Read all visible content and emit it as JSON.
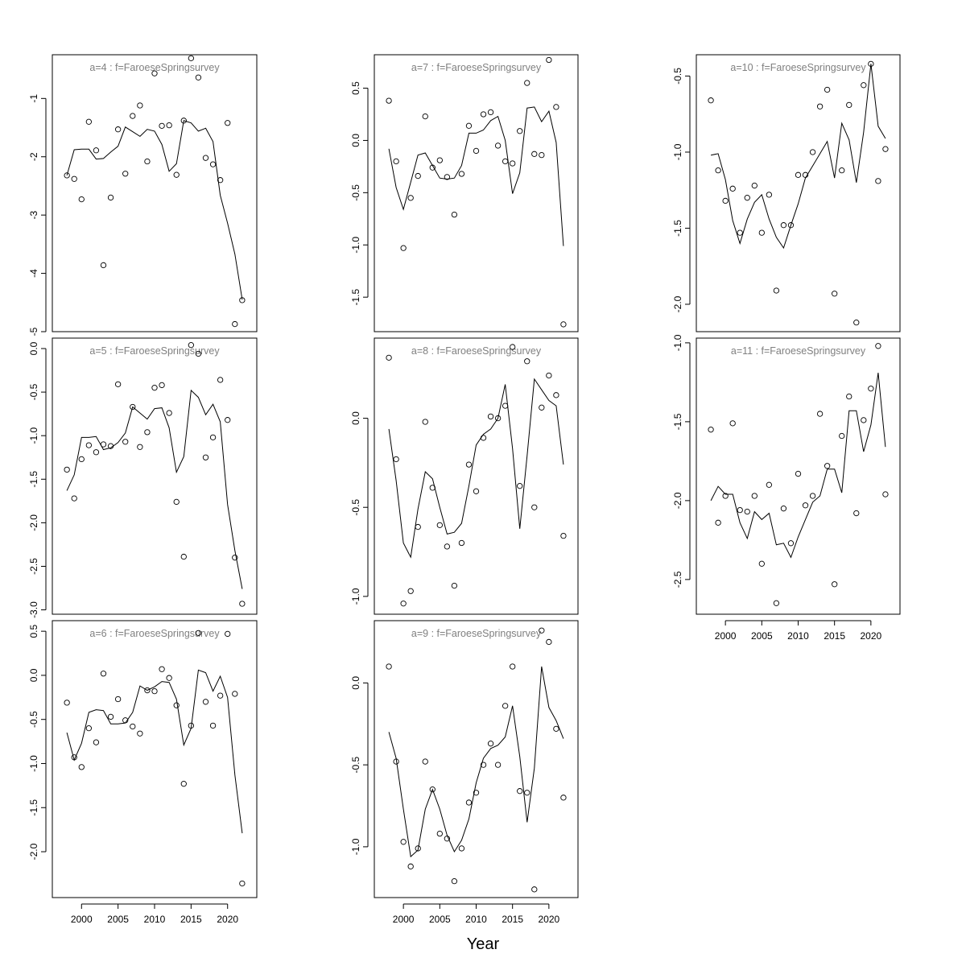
{
  "figure": {
    "xlabel": "Year",
    "panel_title_color": "#808080",
    "line_color": "#000000",
    "point_color": "#000000"
  },
  "chart_data": [
    {
      "type": "scatter",
      "title": "a=4  :  f=FaroeseSpringsurvey",
      "x": [
        1998,
        1999,
        2000,
        2001,
        2002,
        2003,
        2004,
        2005,
        2006,
        2007,
        2008,
        2009,
        2010,
        2011,
        2012,
        2013,
        2014,
        2015,
        2016,
        2017,
        2018,
        2019,
        2020,
        2021,
        2022
      ],
      "series": [
        {
          "role": "observed",
          "values": [
            -2.32,
            -2.38,
            -2.73,
            -1.4,
            -1.89,
            -3.86,
            -2.7,
            -1.53,
            -2.29,
            -1.3,
            -1.12,
            -2.08,
            -0.57,
            -1.47,
            -1.46,
            -2.31,
            -1.38,
            -0.31,
            -0.64,
            -2.02,
            -2.13,
            -2.4,
            -1.42,
            -4.87,
            -4.46
          ]
        },
        {
          "role": "fitted",
          "values": [
            -2.32,
            -1.88,
            -1.87,
            -1.87,
            -2.04,
            -2.03,
            -1.92,
            -1.82,
            -1.49,
            -1.57,
            -1.65,
            -1.53,
            -1.56,
            -1.79,
            -2.25,
            -2.12,
            -1.38,
            -1.42,
            -1.56,
            -1.51,
            -1.74,
            -2.66,
            -3.14,
            -3.67,
            -4.45
          ]
        }
      ],
      "xlim": [
        1996,
        2024
      ],
      "ylim": [
        -5.0,
        -0.25
      ],
      "yticks": [
        -5,
        -4,
        -3,
        -2,
        -1
      ]
    },
    {
      "type": "scatter",
      "title": "a=5  :  f=FaroeseSpringsurvey",
      "x": [
        1998,
        1999,
        2000,
        2001,
        2002,
        2003,
        2004,
        2005,
        2006,
        2007,
        2008,
        2009,
        2010,
        2011,
        2012,
        2013,
        2014,
        2015,
        2016,
        2017,
        2018,
        2019,
        2020,
        2021,
        2022
      ],
      "series": [
        {
          "role": "observed",
          "values": [
            -1.39,
            -1.72,
            -1.27,
            -1.11,
            -1.19,
            -1.1,
            -1.12,
            -0.41,
            -1.07,
            -0.67,
            -1.13,
            -0.96,
            -0.45,
            -0.42,
            -0.74,
            -1.76,
            -2.39,
            0.04,
            -0.06,
            -1.25,
            -1.02,
            -0.36,
            -0.82,
            -2.4,
            -2.93
          ]
        },
        {
          "role": "fitted",
          "values": [
            -1.63,
            -1.45,
            -1.02,
            -1.02,
            -1.01,
            -1.16,
            -1.14,
            -1.08,
            -0.97,
            -0.67,
            -0.74,
            -0.81,
            -0.69,
            -0.68,
            -0.91,
            -1.42,
            -1.24,
            -0.48,
            -0.56,
            -0.76,
            -0.64,
            -0.84,
            -1.79,
            -2.32,
            -2.76
          ]
        }
      ],
      "xlim": [
        1996,
        2024
      ],
      "ylim": [
        -3.05,
        0.12
      ],
      "yticks": [
        -3.0,
        -2.5,
        -2.0,
        -1.5,
        -1.0,
        -0.5,
        0.0
      ]
    },
    {
      "type": "scatter",
      "title": "a=6  :  f=FaroeseSpringsurvey",
      "x": [
        1998,
        1999,
        2000,
        2001,
        2002,
        2003,
        2004,
        2005,
        2006,
        2007,
        2008,
        2009,
        2010,
        2011,
        2012,
        2013,
        2014,
        2015,
        2016,
        2017,
        2018,
        2019,
        2020,
        2021,
        2022
      ],
      "series": [
        {
          "role": "observed",
          "values": [
            -0.31,
            -0.93,
            -1.04,
            -0.6,
            -0.76,
            0.02,
            -0.47,
            -0.27,
            -0.51,
            -0.58,
            -0.66,
            -0.17,
            -0.18,
            0.07,
            -0.03,
            -0.34,
            -1.23,
            -0.57,
            0.48,
            -0.3,
            -0.57,
            -0.23,
            0.47,
            -0.21,
            -2.36
          ]
        },
        {
          "role": "fitted",
          "values": [
            -0.65,
            -0.96,
            -0.77,
            -0.42,
            -0.39,
            -0.4,
            -0.55,
            -0.55,
            -0.54,
            -0.42,
            -0.12,
            -0.17,
            -0.13,
            -0.07,
            -0.08,
            -0.27,
            -0.79,
            -0.6,
            0.06,
            0.03,
            -0.18,
            -0.01,
            -0.25,
            -1.13,
            -1.79
          ]
        }
      ],
      "xlim": [
        1996,
        2024
      ],
      "ylim": [
        -2.52,
        0.62
      ],
      "yticks": [
        -2.0,
        -1.5,
        -1.0,
        -0.5,
        0.0,
        0.5
      ]
    },
    {
      "type": "scatter",
      "title": "a=7  :  f=FaroeseSpringsurvey",
      "x": [
        1998,
        1999,
        2000,
        2001,
        2002,
        2003,
        2004,
        2005,
        2006,
        2007,
        2008,
        2009,
        2010,
        2011,
        2012,
        2013,
        2014,
        2015,
        2016,
        2017,
        2018,
        2019,
        2020,
        2021,
        2022
      ],
      "series": [
        {
          "role": "observed",
          "values": [
            0.38,
            -0.2,
            -1.03,
            -0.55,
            -0.34,
            0.23,
            -0.26,
            -0.19,
            -0.35,
            -0.71,
            -0.32,
            0.14,
            -0.1,
            0.25,
            0.27,
            -0.05,
            -0.2,
            -0.22,
            0.09,
            0.55,
            -0.13,
            -0.14,
            0.77,
            0.32,
            -1.76
          ]
        },
        {
          "role": "fitted",
          "values": [
            -0.08,
            -0.45,
            -0.66,
            -0.4,
            -0.14,
            -0.12,
            -0.24,
            -0.36,
            -0.37,
            -0.36,
            -0.24,
            0.07,
            0.07,
            0.1,
            0.19,
            0.23,
            0.0,
            -0.51,
            -0.31,
            0.31,
            0.32,
            0.18,
            0.28,
            -0.02,
            -1.01
          ]
        }
      ],
      "xlim": [
        1996,
        2024
      ],
      "ylim": [
        -1.83,
        0.82
      ],
      "yticks": [
        -1.5,
        -1.0,
        -0.5,
        0.0,
        0.5
      ]
    },
    {
      "type": "scatter",
      "title": "a=8  :  f=FaroeseSpringsurvey",
      "x": [
        1998,
        1999,
        2000,
        2001,
        2002,
        2003,
        2004,
        2005,
        2006,
        2007,
        2008,
        2009,
        2010,
        2011,
        2012,
        2013,
        2014,
        2015,
        2016,
        2017,
        2018,
        2019,
        2020,
        2021,
        2022
      ],
      "series": [
        {
          "role": "observed",
          "values": [
            0.34,
            -0.23,
            -1.04,
            -0.97,
            -0.61,
            -0.02,
            -0.39,
            -0.6,
            -0.72,
            -0.94,
            -0.7,
            -0.26,
            -0.41,
            -0.11,
            0.01,
            0.0,
            0.07,
            0.4,
            -0.38,
            0.32,
            -0.5,
            0.06,
            0.24,
            0.13,
            -0.66
          ]
        },
        {
          "role": "fitted",
          "values": [
            -0.06,
            -0.35,
            -0.7,
            -0.78,
            -0.51,
            -0.3,
            -0.34,
            -0.5,
            -0.65,
            -0.64,
            -0.59,
            -0.38,
            -0.15,
            -0.09,
            -0.06,
            0.0,
            0.19,
            -0.17,
            -0.62,
            -0.21,
            0.22,
            0.16,
            0.1,
            0.07,
            -0.26
          ]
        }
      ],
      "xlim": [
        1996,
        2024
      ],
      "ylim": [
        -1.1,
        0.45
      ],
      "yticks": [
        -1.0,
        -0.5,
        0.0
      ]
    },
    {
      "type": "scatter",
      "title": "a=9  :  f=FaroeseSpringsurvey",
      "x": [
        1998,
        1999,
        2000,
        2001,
        2002,
        2003,
        2004,
        2005,
        2006,
        2007,
        2008,
        2009,
        2010,
        2011,
        2012,
        2013,
        2014,
        2015,
        2016,
        2017,
        2018,
        2019,
        2020,
        2021,
        2022
      ],
      "series": [
        {
          "role": "observed",
          "values": [
            0.1,
            -0.48,
            -0.97,
            -1.12,
            -1.01,
            -0.48,
            -0.65,
            -0.92,
            -0.95,
            -1.21,
            -1.01,
            -0.73,
            -0.67,
            -0.5,
            -0.37,
            -0.5,
            -0.14,
            0.1,
            -0.66,
            -0.67,
            -1.26,
            0.32,
            0.25,
            -0.28,
            -0.7
          ]
        },
        {
          "role": "fitted",
          "values": [
            -0.3,
            -0.46,
            -0.77,
            -1.06,
            -1.02,
            -0.77,
            -0.65,
            -0.77,
            -0.93,
            -1.03,
            -0.96,
            -0.83,
            -0.61,
            -0.46,
            -0.4,
            -0.38,
            -0.33,
            -0.14,
            -0.45,
            -0.85,
            -0.52,
            0.1,
            -0.15,
            -0.23,
            -0.34
          ]
        }
      ],
      "xlim": [
        1996,
        2024
      ],
      "ylim": [
        -1.31,
        0.38
      ],
      "yticks": [
        -1.0,
        -0.5,
        0.0
      ]
    },
    {
      "type": "scatter",
      "title": "a=10  :  f=FaroeseSpringsurvey",
      "x": [
        1998,
        1999,
        2000,
        2001,
        2002,
        2003,
        2004,
        2005,
        2006,
        2007,
        2008,
        2009,
        2010,
        2011,
        2012,
        2013,
        2014,
        2015,
        2016,
        2017,
        2018,
        2019,
        2020,
        2021,
        2022
      ],
      "series": [
        {
          "role": "observed",
          "values": [
            -0.66,
            -1.12,
            -1.32,
            -1.24,
            -1.53,
            -1.3,
            -1.22,
            -1.53,
            -1.28,
            -1.91,
            -1.48,
            -1.48,
            -1.15,
            -1.15,
            -1.0,
            -0.7,
            -0.59,
            -1.93,
            -1.12,
            -0.69,
            -2.12,
            -0.56,
            -0.42,
            -1.19,
            -0.98
          ]
        },
        {
          "role": "fitted",
          "values": [
            -1.02,
            -1.01,
            -1.18,
            -1.45,
            -1.6,
            -1.44,
            -1.33,
            -1.28,
            -1.44,
            -1.56,
            -1.63,
            -1.48,
            -1.34,
            -1.17,
            -1.09,
            -1.01,
            -0.93,
            -1.17,
            -0.81,
            -0.92,
            -1.2,
            -0.87,
            -0.42,
            -0.83,
            -0.91
          ]
        }
      ],
      "xlim": [
        1996,
        2024
      ],
      "ylim": [
        -2.18,
        -0.36
      ],
      "yticks": [
        -2.0,
        -1.5,
        -1.0,
        -0.5
      ]
    },
    {
      "type": "scatter",
      "title": "a=11  :  f=FaroeseSpringsurvey",
      "x": [
        1998,
        1999,
        2000,
        2001,
        2002,
        2003,
        2004,
        2005,
        2006,
        2007,
        2008,
        2009,
        2010,
        2011,
        2012,
        2013,
        2014,
        2015,
        2016,
        2017,
        2018,
        2019,
        2020,
        2021,
        2022
      ],
      "series": [
        {
          "role": "observed",
          "values": [
            -1.55,
            -2.14,
            -1.97,
            -1.51,
            -2.06,
            -2.07,
            -1.97,
            -2.4,
            -1.9,
            -2.65,
            -2.05,
            -2.27,
            -1.83,
            -2.03,
            -1.97,
            -1.45,
            -1.78,
            -2.53,
            -1.59,
            -1.34,
            -2.08,
            -1.49,
            -1.29,
            -1.02,
            -1.96
          ]
        },
        {
          "role": "fitted",
          "values": [
            -2.0,
            -1.91,
            -1.96,
            -1.96,
            -2.14,
            -2.24,
            -2.07,
            -2.12,
            -2.08,
            -2.28,
            -2.27,
            -2.36,
            -2.23,
            -2.12,
            -2.01,
            -1.97,
            -1.8,
            -1.8,
            -1.95,
            -1.43,
            -1.43,
            -1.69,
            -1.52,
            -1.19,
            -1.66
          ]
        }
      ],
      "xlim": [
        1996,
        2024
      ],
      "ylim": [
        -2.72,
        -0.97
      ],
      "yticks": [
        -2.5,
        -2.0,
        -1.5,
        -1.0
      ]
    }
  ]
}
